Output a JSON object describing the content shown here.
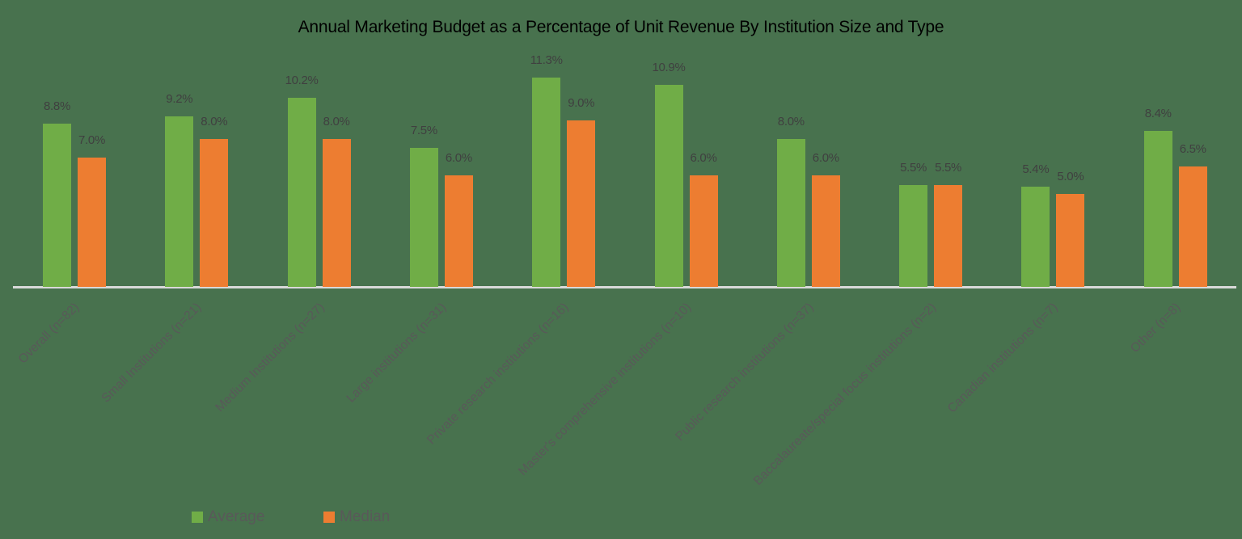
{
  "chart_data": {
    "type": "bar",
    "title": "Annual Marketing Budget as a Percentage of Unit Revenue By Institution Size and Type",
    "xlabel": "",
    "ylabel": "",
    "ylim": [
      0,
      11.3
    ],
    "grid": false,
    "legend_position": "bottom-left",
    "categories": [
      "Overall (n=82)",
      "Small Institutions (n=21)",
      "Medium Institutions (n=27)",
      "Large institutions (n=31)",
      "Private research institutions (n=16)",
      "Master's comprehensive institutions (n=10)",
      "Public research institutions (n=37)",
      "Baccalaureate/special focus institutions (n=2)",
      "Canadian institutions (n=7)",
      "Other (n=8)"
    ],
    "series": [
      {
        "name": "Average",
        "color": "#70AD47",
        "values": [
          8.8,
          9.2,
          10.2,
          7.5,
          11.3,
          10.9,
          8.0,
          5.5,
          5.4,
          8.4
        ],
        "labels": [
          "8.8%",
          "9.2%",
          "10.2%",
          "7.5%",
          "11.3%",
          "10.9%",
          "8.0%",
          "5.5%",
          "5.4%",
          "8.4%"
        ]
      },
      {
        "name": "Median",
        "color": "#ED7D31",
        "values": [
          7.0,
          8.0,
          8.0,
          6.0,
          9.0,
          6.0,
          6.0,
          5.5,
          5.0,
          6.5
        ],
        "labels": [
          "7.0%",
          "8.0%",
          "8.0%",
          "6.0%",
          "9.0%",
          "6.0%",
          "6.0%",
          "5.5%",
          "5.0%",
          "6.5%"
        ]
      }
    ]
  },
  "legend": {
    "items": [
      {
        "label": "Average",
        "color": "#70AD47"
      },
      {
        "label": "Median",
        "color": "#ED7D31"
      }
    ]
  },
  "colors": {
    "background": "#48724E",
    "axis": "#D9D9D9",
    "title": "#000000",
    "value_label": "#404040",
    "category_label": "#595959"
  }
}
